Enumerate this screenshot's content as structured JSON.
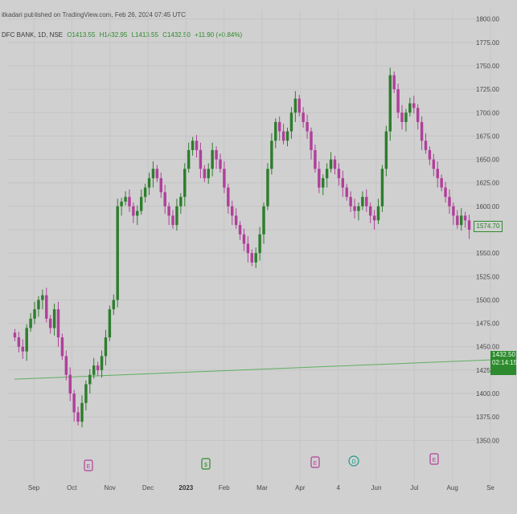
{
  "header": {
    "published": "itkadari published on TradingView.com, Feb 26, 2024 07:45 UTC",
    "symbol": "DFC BANK, 1D, NSE",
    "open": "O1413.55",
    "high": "H1432.95",
    "low": "L1413.55",
    "close": "C1432.50",
    "change": "+11.90 (+0.84%)"
  },
  "price_axis": {
    "ticks": [
      "1800.00",
      "1775.00",
      "1750.00",
      "1725.00",
      "1700.00",
      "1675.00",
      "1650.00",
      "1625.00",
      "1600.00",
      "1575.00",
      "1550.00",
      "1525.00",
      "1500.00",
      "1475.00",
      "1450.00",
      "1425.00",
      "1400.00",
      "1375.00",
      "1350.00"
    ],
    "last_price_label": "1574.70",
    "horizontal_line_label": "1432.50",
    "horizontal_line_sublabel": "02:14:15"
  },
  "time_axis": {
    "ticks": [
      "Sep",
      "Oct",
      "Nov",
      "Dec",
      "2023",
      "Feb",
      "Mar",
      "Apr",
      "4",
      "Jun",
      "Jul",
      "Aug",
      "Se"
    ]
  },
  "event_markers": [
    {
      "letter": "E",
      "color": "#b0409a"
    },
    {
      "letter": "$",
      "color": "#2e8a2e"
    },
    {
      "letter": "E",
      "color": "#b0409a"
    },
    {
      "letter": "D",
      "color": "#1f9a8a"
    },
    {
      "letter": "E",
      "color": "#b0409a"
    }
  ],
  "colors": {
    "up": "#2e7d2e",
    "down": "#b0409a",
    "hline": "#5fae5f",
    "background": "#d0d0d0"
  },
  "chart_data": {
    "type": "candlestick",
    "y_range": [
      1340,
      1810
    ],
    "x_labels": [
      "Sep",
      "Oct",
      "Nov",
      "Dec",
      "2023",
      "Feb",
      "Mar",
      "Apr",
      "4",
      "Jun",
      "Jul",
      "Aug",
      "Se"
    ],
    "horizontal_line": 1432.5,
    "last_price": 1574.7,
    "closes": [
      1460,
      1450,
      1445,
      1470,
      1480,
      1490,
      1500,
      1505,
      1480,
      1470,
      1490,
      1460,
      1440,
      1420,
      1400,
      1380,
      1370,
      1390,
      1410,
      1420,
      1430,
      1425,
      1440,
      1460,
      1490,
      1500,
      1600,
      1605,
      1610,
      1600,
      1590,
      1595,
      1610,
      1620,
      1630,
      1640,
      1630,
      1615,
      1600,
      1590,
      1580,
      1600,
      1610,
      1640,
      1660,
      1670,
      1660,
      1640,
      1630,
      1640,
      1660,
      1650,
      1640,
      1620,
      1600,
      1590,
      1580,
      1570,
      1560,
      1550,
      1540,
      1550,
      1570,
      1600,
      1640,
      1670,
      1690,
      1680,
      1670,
      1680,
      1700,
      1715,
      1700,
      1690,
      1680,
      1660,
      1640,
      1620,
      1630,
      1640,
      1650,
      1640,
      1630,
      1620,
      1610,
      1600,
      1595,
      1600,
      1610,
      1600,
      1590,
      1585,
      1600,
      1640,
      1680,
      1740,
      1725,
      1700,
      1690,
      1700,
      1710,
      1705,
      1690,
      1670,
      1660,
      1650,
      1640,
      1630,
      1620,
      1610,
      1600,
      1590,
      1580,
      1590,
      1585,
      1575
    ]
  }
}
